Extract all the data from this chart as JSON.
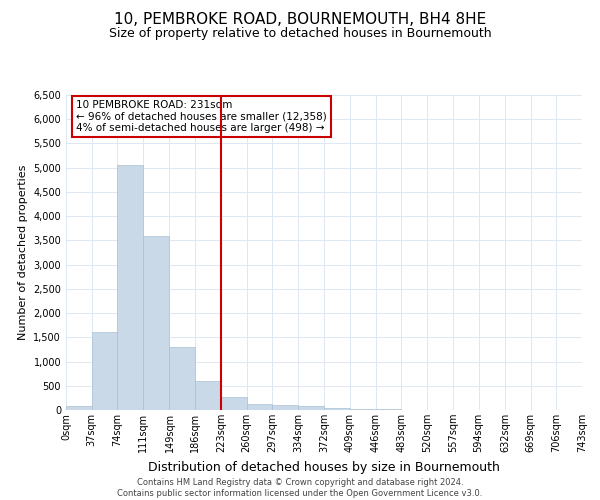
{
  "title": "10, PEMBROKE ROAD, BOURNEMOUTH, BH4 8HE",
  "subtitle": "Size of property relative to detached houses in Bournemouth",
  "xlabel": "Distribution of detached houses by size in Bournemouth",
  "ylabel": "Number of detached properties",
  "bar_color": "#c9d9e8",
  "bar_edge_color": "#a8c0d4",
  "property_line_x": 223,
  "property_line_color": "#cc0000",
  "annotation_text": "10 PEMBROKE ROAD: 231sqm\n← 96% of detached houses are smaller (12,358)\n4% of semi-detached houses are larger (498) →",
  "annotation_box_color": "#ffffff",
  "annotation_box_edge": "#cc0000",
  "footer_line1": "Contains HM Land Registry data © Crown copyright and database right 2024.",
  "footer_line2": "Contains public sector information licensed under the Open Government Licence v3.0.",
  "bin_edges": [
    0,
    37,
    74,
    111,
    149,
    186,
    223,
    260,
    297,
    334,
    372,
    409,
    446,
    483,
    520,
    557,
    594,
    632,
    669,
    706,
    743
  ],
  "bin_labels": [
    "0sqm",
    "37sqm",
    "74sqm",
    "111sqm",
    "149sqm",
    "186sqm",
    "223sqm",
    "260sqm",
    "297sqm",
    "334sqm",
    "372sqm",
    "409sqm",
    "446sqm",
    "483sqm",
    "520sqm",
    "557sqm",
    "594sqm",
    "632sqm",
    "669sqm",
    "706sqm",
    "743sqm"
  ],
  "counts": [
    75,
    1600,
    5050,
    3600,
    1300,
    600,
    275,
    125,
    100,
    75,
    50,
    25,
    15,
    8,
    4,
    2,
    1,
    1,
    0,
    0
  ],
  "ylim": [
    0,
    6500
  ],
  "yticks": [
    0,
    500,
    1000,
    1500,
    2000,
    2500,
    3000,
    3500,
    4000,
    4500,
    5000,
    5500,
    6000,
    6500
  ],
  "background_color": "#ffffff",
  "grid_color": "#dde8f2",
  "title_fontsize": 11,
  "subtitle_fontsize": 9,
  "tick_fontsize": 7,
  "ylabel_fontsize": 8,
  "xlabel_fontsize": 9,
  "annot_fontsize": 7.5,
  "footer_fontsize": 6
}
